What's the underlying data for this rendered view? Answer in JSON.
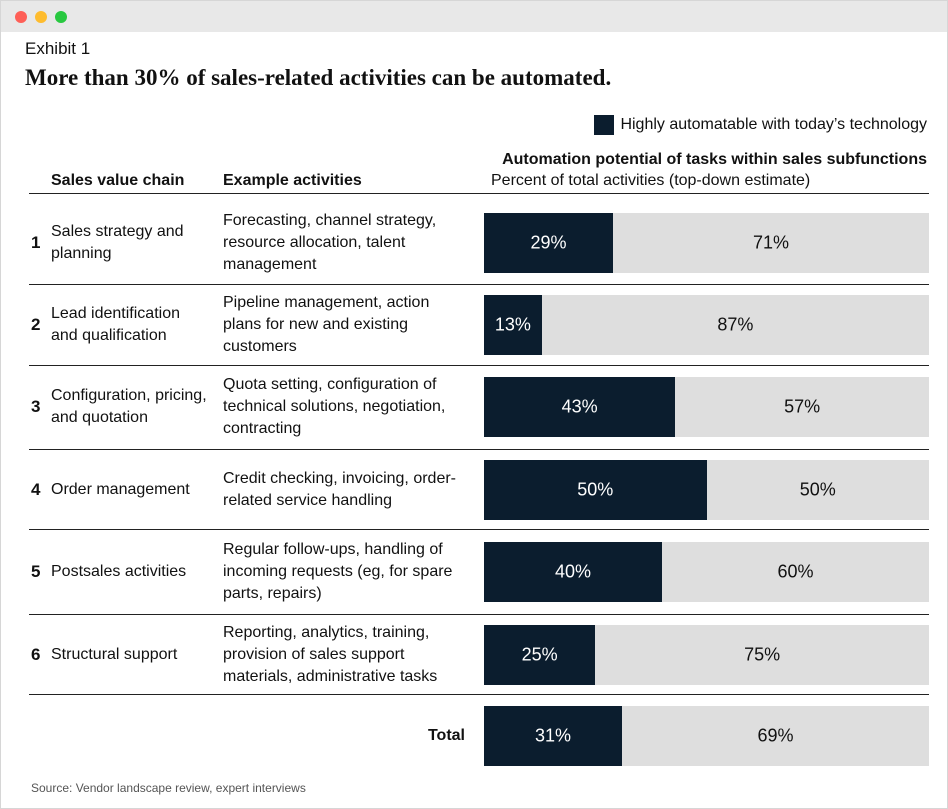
{
  "chart_data": {
    "type": "bar",
    "orientation": "horizontal",
    "stacked": true,
    "label": "Exhibit 1",
    "title": "More than 30% of sales-related activities can be automated.",
    "column_headers": [
      "Sales value chain",
      "Example activities"
    ],
    "chart_title": "Automation potential of tasks within sales subfunctions",
    "chart_subtitle": "Percent of total activities (top-down estimate)",
    "row_numbers": [
      "1",
      "2",
      "3",
      "4",
      "5",
      "6",
      null
    ],
    "categories": [
      "Sales strategy and planning",
      "Lead identification and qualification",
      "Configuration, pricing, and quotation",
      "Order management",
      "Postsales activities",
      "Structural support",
      "Total"
    ],
    "activities": [
      "Forecasting, channel strategy, resource allocation, talent management",
      "Pipeline management, action plans for new and existing customers",
      "Quota setting, configuration of technical solutions, negotiation, contracting",
      "Credit checking, invoicing, order-related service handling",
      "Regular follow-ups, handling of incoming requests (eg, for spare parts, repairs)",
      "Reporting, analytics, training, provision of sales support materials, administrative tasks",
      null
    ],
    "series": [
      {
        "name": "Highly automatable with today’s technology",
        "color": "#0b1d2e",
        "values": [
          29,
          13,
          43,
          50,
          40,
          25,
          31
        ],
        "value_labels": [
          "29%",
          "13%",
          "43%",
          "50%",
          "40%",
          "25%",
          "31%"
        ]
      },
      {
        "color": "#dedede",
        "values": [
          71,
          87,
          57,
          50,
          60,
          75,
          69
        ],
        "value_labels": [
          "71%",
          "87%",
          "57%",
          "50%",
          "60%",
          "75%",
          "69%"
        ]
      }
    ],
    "xlim": [
      0,
      100
    ],
    "source": "Source: Vendor landscape review, expert interviews"
  }
}
